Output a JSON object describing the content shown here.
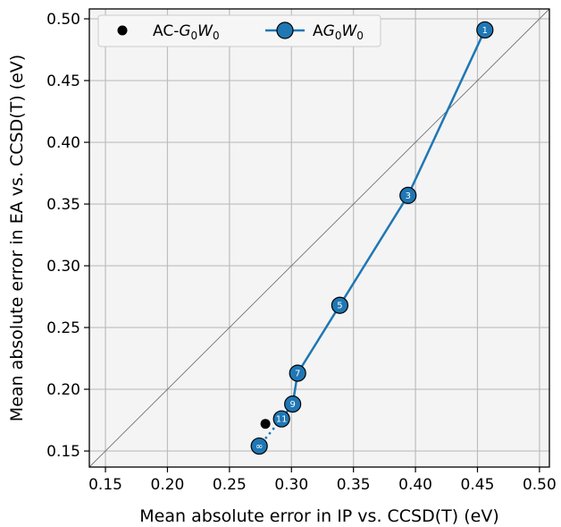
{
  "chart_data": {
    "type": "scatter",
    "xlabel": "Mean absolute error in IP vs. CCSD(T) (eV)",
    "ylabel": "Mean absolute error in EA vs. CCSD(T) (eV)",
    "xlim": [
      0.137,
      0.508
    ],
    "ylim": [
      0.137,
      0.508
    ],
    "xticks": [
      "0.15",
      "0.20",
      "0.25",
      "0.30",
      "0.35",
      "0.40",
      "0.45",
      "0.50"
    ],
    "yticks": [
      "0.15",
      "0.20",
      "0.25",
      "0.30",
      "0.35",
      "0.40",
      "0.45",
      "0.50"
    ],
    "grid": true,
    "diagonal": true,
    "legend_position": "top-left",
    "colors": {
      "ag0w0": "#1f77b4",
      "ac": "#000000",
      "plot_bg": "#f4f4f4",
      "grid": "#bdbdbd"
    },
    "legend": [
      {
        "key": "ac",
        "prefix": "AC-",
        "italic1": "G",
        "sub1": "0",
        "italic2": "W",
        "sub2": "0"
      },
      {
        "key": "ag0w0",
        "prefix": "A",
        "italic1": "G",
        "sub1": "0",
        "italic2": "W",
        "sub2": "0"
      }
    ],
    "series": [
      {
        "key": "ag0w0",
        "points": [
          {
            "label": "1",
            "x": 0.456,
            "y": 0.491
          },
          {
            "label": "3",
            "x": 0.394,
            "y": 0.357
          },
          {
            "label": "5",
            "x": 0.339,
            "y": 0.268
          },
          {
            "label": "7",
            "x": 0.305,
            "y": 0.213
          },
          {
            "label": "9",
            "x": 0.301,
            "y": 0.188
          },
          {
            "label": "11",
            "x": 0.292,
            "y": 0.176
          }
        ],
        "extrapolated": {
          "label": "∞",
          "x": 0.274,
          "y": 0.154
        }
      },
      {
        "key": "ac",
        "points": [
          {
            "x": 0.279,
            "y": 0.172
          }
        ]
      }
    ]
  }
}
